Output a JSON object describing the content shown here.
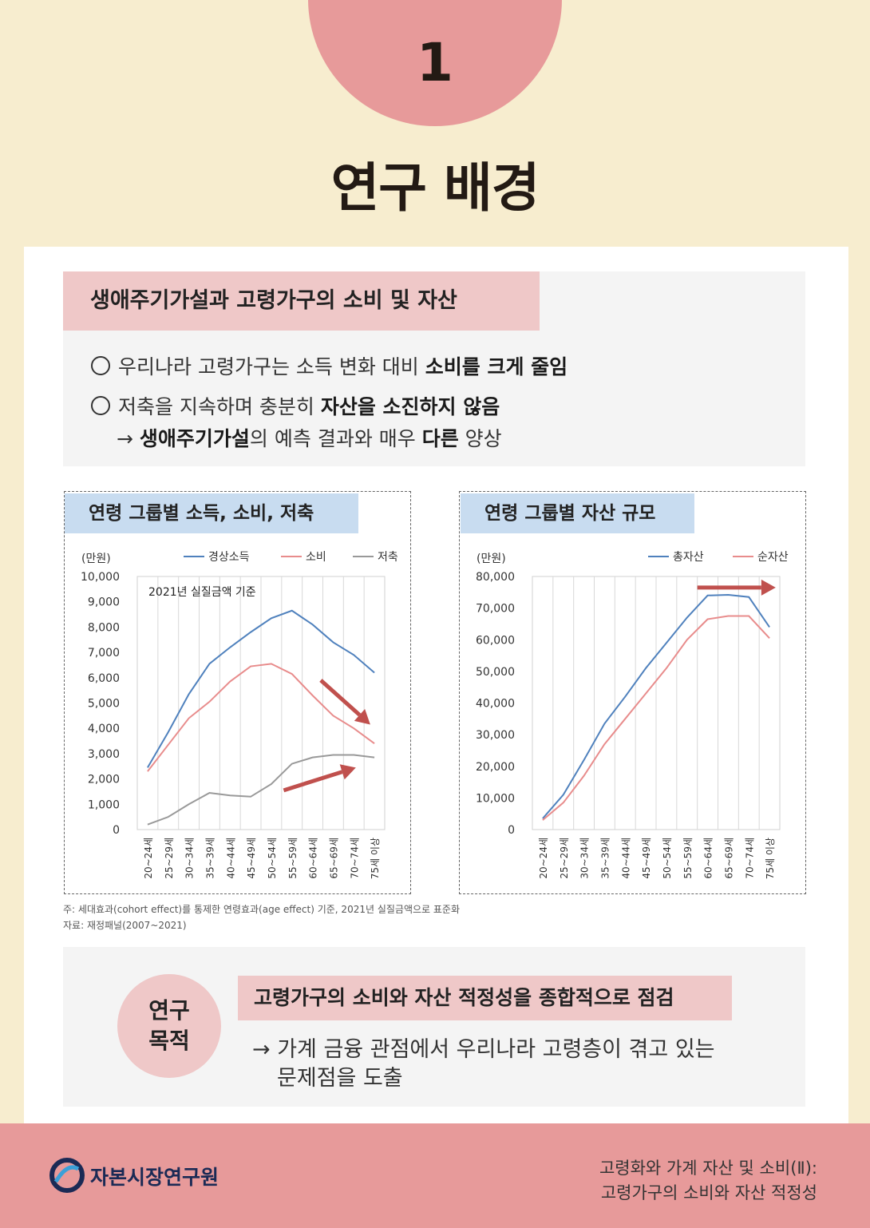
{
  "section": {
    "number": "1",
    "title": "연구 배경"
  },
  "background": {
    "heading": "생애주기가설과 고령가구의 소비 및 자산",
    "line1_pre": "우리나라 고령가구는 소득 변화 대비 ",
    "line1_bold": "소비를 크게 줄임",
    "line2_pre": "저축을 지속하며 충분히 ",
    "line2_bold": "자산을 소진하지 않음",
    "line3_arrow": "→ ",
    "line3_bold1": "생애주기가설",
    "line3_mid": "의 예측 결과와 매우 ",
    "line3_bold2": "다른",
    "line3_end": " 양상"
  },
  "chart1_meta": {
    "title": "연령 그룹별 소득, 소비, 저축",
    "unit": "(만원)",
    "annotation": "2021년 실질금액 기준"
  },
  "chart2_meta": {
    "title": "연령 그룹별 자산 규모",
    "unit": "(만원)"
  },
  "chart_data": [
    {
      "type": "line",
      "title": "연령 그룹별 소득, 소비, 저축",
      "ylabel": "(만원)",
      "ylim": [
        0,
        10000
      ],
      "yticks": [
        0,
        1000,
        2000,
        3000,
        4000,
        5000,
        6000,
        7000,
        8000,
        9000,
        10000
      ],
      "ytick_labels": [
        "0",
        "1,000",
        "2,000",
        "3,000",
        "4,000",
        "5,000",
        "6,000",
        "7,000",
        "8,000",
        "9,000",
        "10,000"
      ],
      "categories": [
        "20~24세",
        "25~29세",
        "30~34세",
        "35~39세",
        "40~44세",
        "45~49세",
        "50~54세",
        "55~59세",
        "60~64세",
        "65~69세",
        "70~74세",
        "75세 이상"
      ],
      "series": [
        {
          "name": "경상소득",
          "color": "#4f81bd",
          "values": [
            2450,
            3850,
            5350,
            6550,
            7200,
            7800,
            8350,
            8650,
            8100,
            7400,
            6900,
            6200
          ]
        },
        {
          "name": "소비",
          "color": "#e88c8c",
          "values": [
            2300,
            3350,
            4400,
            5050,
            5850,
            6450,
            6550,
            6150,
            5300,
            4500,
            4000,
            3400
          ]
        },
        {
          "name": "저축",
          "color": "#999999",
          "values": [
            200,
            500,
            1000,
            1450,
            1350,
            1300,
            1800,
            2600,
            2850,
            2950,
            2950,
            2850
          ]
        }
      ],
      "legend": "top",
      "grid": "vertical"
    },
    {
      "type": "line",
      "title": "연령 그룹별 자산 규모",
      "ylabel": "(만원)",
      "ylim": [
        0,
        80000
      ],
      "yticks": [
        0,
        10000,
        20000,
        30000,
        40000,
        50000,
        60000,
        70000,
        80000
      ],
      "ytick_labels": [
        "0",
        "10,000",
        "20,000",
        "30,000",
        "40,000",
        "50,000",
        "60,000",
        "70,000",
        "80,000"
      ],
      "categories": [
        "20~24세",
        "25~29세",
        "30~34세",
        "35~39세",
        "40~44세",
        "45~49세",
        "50~54세",
        "55~59세",
        "60~64세",
        "65~69세",
        "70~74세",
        "75세 이상"
      ],
      "series": [
        {
          "name": "총자산",
          "color": "#4f81bd",
          "values": [
            3500,
            11000,
            22000,
            33500,
            42000,
            51000,
            59000,
            67000,
            74000,
            74200,
            73500,
            64000
          ]
        },
        {
          "name": "순자산",
          "color": "#e88c8c",
          "values": [
            3000,
            8500,
            17000,
            27000,
            35000,
            43000,
            51000,
            60000,
            66500,
            67500,
            67500,
            60500
          ]
        }
      ],
      "legend": "top-right",
      "grid": "vertical"
    }
  ],
  "notes": {
    "note1": "주: 세대효과(cohort effect)를 통제한 연령효과(age effect) 기준, 2021년 실질금액으로 표준화",
    "note2": "자료: 재정패널(2007~2021)"
  },
  "purpose": {
    "label_line1": "연구",
    "label_line2": "목적",
    "heading": "고령가구의 소비와 자산 적정성을 종합적으로 점검",
    "line1": "→ 가계 금융 관점에서 우리나라 고령층이 겪고 있는",
    "line2": "문제점을 도출"
  },
  "footer": {
    "org": "자본시장연구원",
    "report_line1": "고령화와 가계 자산 및 소비(Ⅱ):",
    "report_line2": "고령가구의 소비와 자산 적정성"
  },
  "colors": {
    "background": "#f7edcf",
    "accent_pink": "#e79a9a",
    "light_pink": "#efc8c8",
    "light_blue": "#c8dcf0",
    "arrow_red": "#c0504d"
  }
}
